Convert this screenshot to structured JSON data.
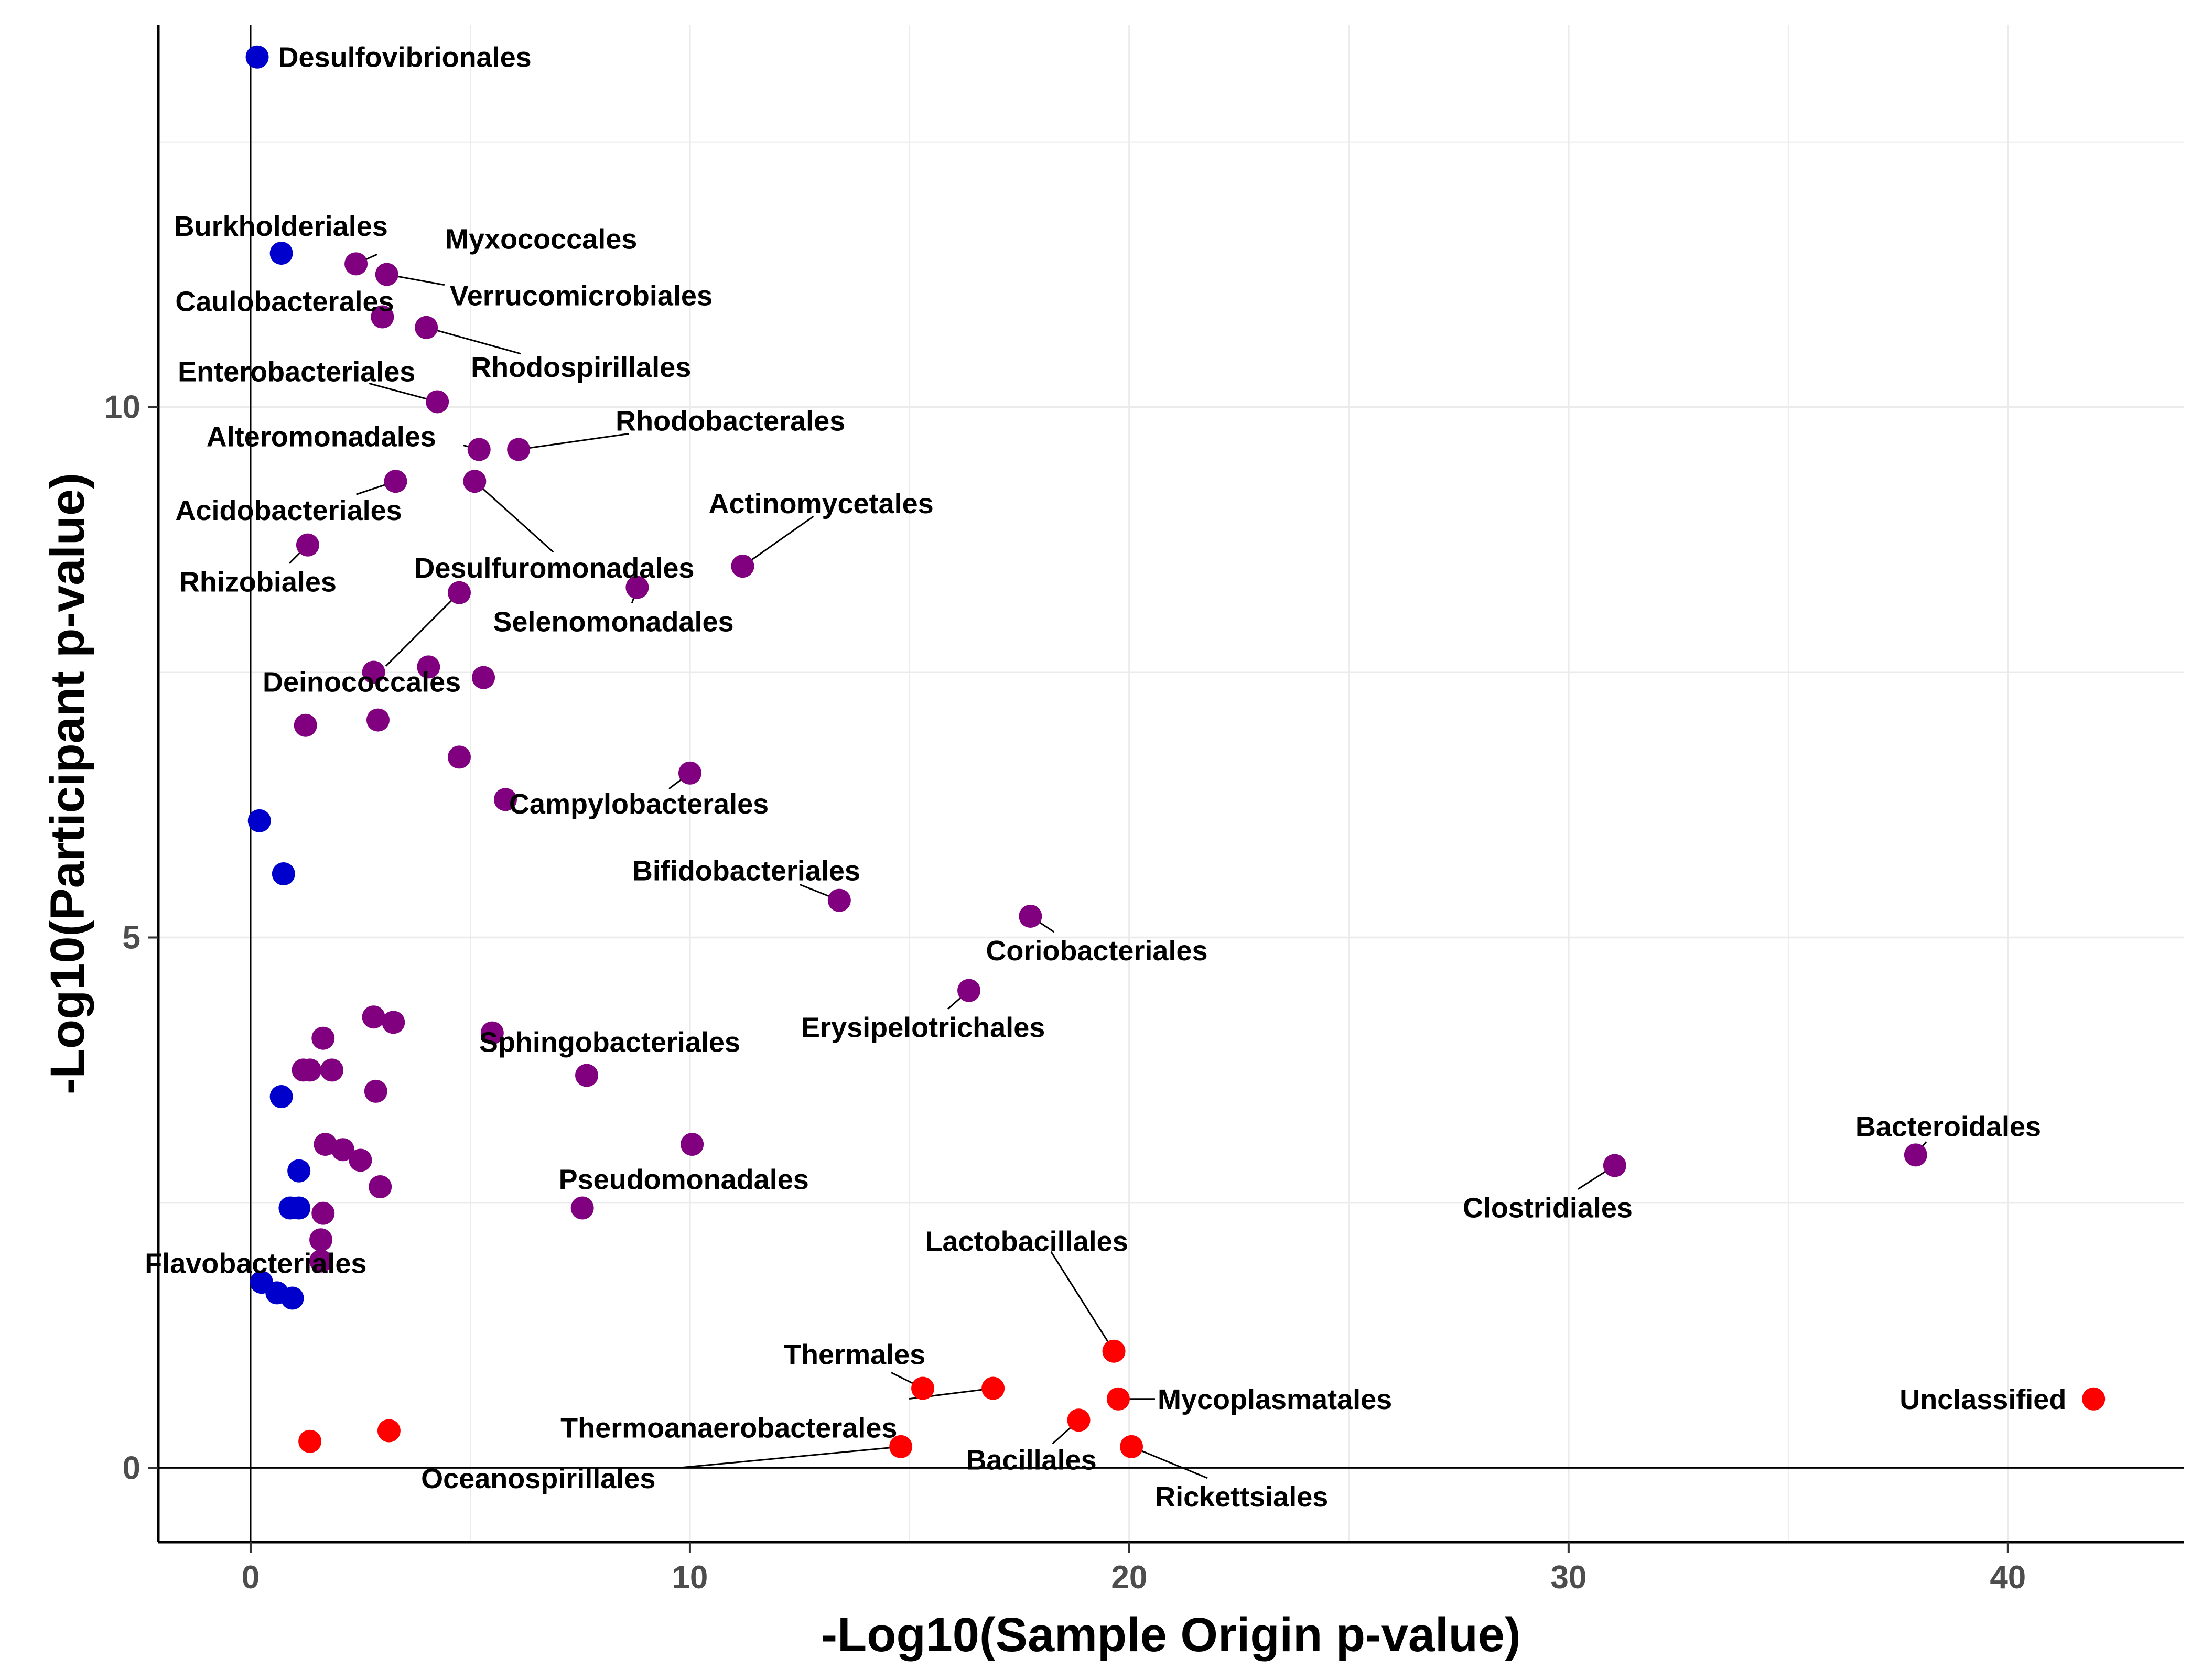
{
  "chart_data": {
    "type": "scatter",
    "xlabel": "-Log10(Sample Origin p-value)",
    "ylabel": "-Log10(Participant p-value)",
    "xlim": [
      -2.1,
      44
    ],
    "ylim": [
      -0.7,
      13.6
    ],
    "x_ticks": [
      0,
      10,
      20,
      30,
      40
    ],
    "y_ticks": [
      0,
      5,
      10
    ],
    "grid": true,
    "colors": {
      "blue": "#0000CD",
      "purple": "#800080",
      "red": "#FF0000"
    },
    "points": [
      {
        "x": 0.15,
        "y": 13.3,
        "color": "blue",
        "label": "Desulfovibrionales"
      },
      {
        "x": 0.7,
        "y": 11.45,
        "color": "blue",
        "label": "Burkholderiales"
      },
      {
        "x": 2.4,
        "y": 11.35,
        "color": "purple",
        "label": "Myxococcales"
      },
      {
        "x": 3.1,
        "y": 11.25,
        "color": "purple",
        "label": "Verrucomicrobiales"
      },
      {
        "x": 3.0,
        "y": 10.85,
        "color": "purple",
        "label": "Caulobacterales"
      },
      {
        "x": 4.0,
        "y": 10.75,
        "color": "purple",
        "label": "Rhodospirillales"
      },
      {
        "x": 4.25,
        "y": 10.05,
        "color": "purple",
        "label": "Enterobacteriales"
      },
      {
        "x": 5.2,
        "y": 9.6,
        "color": "purple",
        "label": "Alteromonadales"
      },
      {
        "x": 6.1,
        "y": 9.6,
        "color": "purple",
        "label": "Rhodobacterales"
      },
      {
        "x": 3.3,
        "y": 9.3,
        "color": "purple",
        "label": "Acidobacteriales"
      },
      {
        "x": 5.1,
        "y": 9.3,
        "color": "purple",
        "label": "Desulfuromonadales"
      },
      {
        "x": 11.2,
        "y": 8.5,
        "color": "purple",
        "label": "Actinomycetales"
      },
      {
        "x": 1.3,
        "y": 8.7,
        "color": "purple",
        "label": "Rhizobiales"
      },
      {
        "x": 8.8,
        "y": 8.3,
        "color": "purple",
        "label": "Selenomonadales"
      },
      {
        "x": 4.75,
        "y": 8.25,
        "color": "purple",
        "label": "Deinococcales"
      },
      {
        "x": 2.8,
        "y": 7.5,
        "color": "purple",
        "label": ""
      },
      {
        "x": 4.05,
        "y": 7.55,
        "color": "purple",
        "label": ""
      },
      {
        "x": 5.3,
        "y": 7.45,
        "color": "purple",
        "label": ""
      },
      {
        "x": 1.25,
        "y": 7.0,
        "color": "purple",
        "label": ""
      },
      {
        "x": 2.9,
        "y": 7.05,
        "color": "purple",
        "label": ""
      },
      {
        "x": 4.75,
        "y": 6.7,
        "color": "purple",
        "label": ""
      },
      {
        "x": 10.0,
        "y": 6.55,
        "color": "purple",
        "label": "Campylobacterales"
      },
      {
        "x": 5.8,
        "y": 6.3,
        "color": "purple",
        "label": ""
      },
      {
        "x": 0.2,
        "y": 6.1,
        "color": "blue",
        "label": ""
      },
      {
        "x": 0.75,
        "y": 5.6,
        "color": "blue",
        "label": ""
      },
      {
        "x": 13.4,
        "y": 5.35,
        "color": "purple",
        "label": "Bifidobacteriales"
      },
      {
        "x": 17.75,
        "y": 5.2,
        "color": "purple",
        "label": "Coriobacteriales"
      },
      {
        "x": 16.35,
        "y": 4.5,
        "color": "purple",
        "label": "Erysipelotrichales"
      },
      {
        "x": 2.8,
        "y": 4.25,
        "color": "purple",
        "label": ""
      },
      {
        "x": 3.25,
        "y": 4.2,
        "color": "purple",
        "label": ""
      },
      {
        "x": 1.65,
        "y": 4.05,
        "color": "purple",
        "label": ""
      },
      {
        "x": 5.5,
        "y": 4.1,
        "color": "purple",
        "label": "Sphingobacteriales"
      },
      {
        "x": 1.2,
        "y": 3.75,
        "color": "purple",
        "label": ""
      },
      {
        "x": 1.35,
        "y": 3.75,
        "color": "purple",
        "label": ""
      },
      {
        "x": 1.85,
        "y": 3.75,
        "color": "purple",
        "label": ""
      },
      {
        "x": 7.65,
        "y": 3.7,
        "color": "purple",
        "label": ""
      },
      {
        "x": 2.85,
        "y": 3.55,
        "color": "purple",
        "label": ""
      },
      {
        "x": 0.7,
        "y": 3.5,
        "color": "blue",
        "label": ""
      },
      {
        "x": 10.05,
        "y": 3.05,
        "color": "purple",
        "label": ""
      },
      {
        "x": 1.7,
        "y": 3.05,
        "color": "purple",
        "label": ""
      },
      {
        "x": 2.1,
        "y": 3.0,
        "color": "purple",
        "label": ""
      },
      {
        "x": 2.5,
        "y": 2.9,
        "color": "purple",
        "label": ""
      },
      {
        "x": 1.1,
        "y": 2.8,
        "color": "blue",
        "label": ""
      },
      {
        "x": 2.95,
        "y": 2.65,
        "color": "purple",
        "label": ""
      },
      {
        "x": 31.05,
        "y": 2.85,
        "color": "purple",
        "label": "Clostridiales"
      },
      {
        "x": 37.9,
        "y": 2.95,
        "color": "purple",
        "label": "Bacteroidales"
      },
      {
        "x": 7.55,
        "y": 2.45,
        "color": "purple",
        "label": "Pseudomonadales"
      },
      {
        "x": 0.9,
        "y": 2.45,
        "color": "blue",
        "label": ""
      },
      {
        "x": 1.1,
        "y": 2.45,
        "color": "blue",
        "label": ""
      },
      {
        "x": 1.65,
        "y": 2.4,
        "color": "purple",
        "label": "Flavobacteriales"
      },
      {
        "x": 1.6,
        "y": 2.15,
        "color": "purple",
        "label": ""
      },
      {
        "x": 1.6,
        "y": 1.95,
        "color": "purple",
        "label": ""
      },
      {
        "x": 0.25,
        "y": 1.75,
        "color": "blue",
        "label": ""
      },
      {
        "x": 0.6,
        "y": 1.65,
        "color": "blue",
        "label": ""
      },
      {
        "x": 0.95,
        "y": 1.6,
        "color": "blue",
        "label": ""
      },
      {
        "x": 19.65,
        "y": 1.1,
        "color": "red",
        "label": "Lactobacillales"
      },
      {
        "x": 15.3,
        "y": 0.75,
        "color": "red",
        "label": "Thermales"
      },
      {
        "x": 16.9,
        "y": 0.75,
        "color": "red",
        "label": "Thermoanaerobacterales"
      },
      {
        "x": 19.75,
        "y": 0.65,
        "color": "red",
        "label": "Mycoplasmatales"
      },
      {
        "x": 41.95,
        "y": 0.65,
        "color": "red",
        "label": "Unclassified"
      },
      {
        "x": 18.85,
        "y": 0.45,
        "color": "red",
        "label": "Bacillales"
      },
      {
        "x": 3.15,
        "y": 0.35,
        "color": "red",
        "label": ""
      },
      {
        "x": 1.35,
        "y": 0.25,
        "color": "red",
        "label": ""
      },
      {
        "x": 14.8,
        "y": 0.2,
        "color": "red",
        "label": "Oceanospirillales"
      },
      {
        "x": 20.05,
        "y": 0.2,
        "color": "red",
        "label": "Rickettsiales"
      }
    ]
  }
}
